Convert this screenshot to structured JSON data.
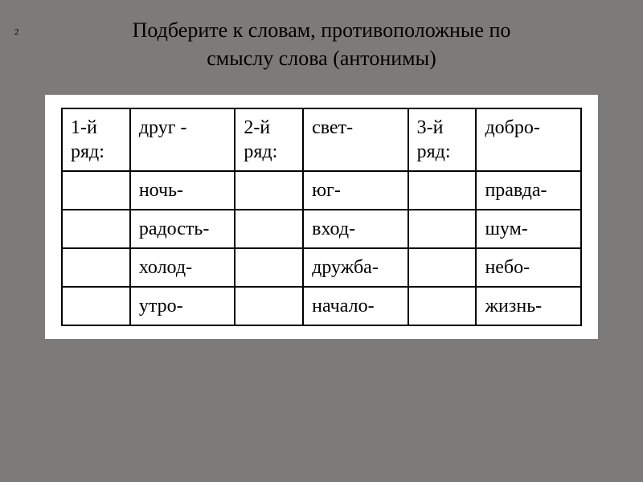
{
  "slideNumber": "2",
  "title": {
    "line1": "Подберите к словам, противоположные по",
    "line2": "смыслу слова (антонимы)"
  },
  "table": {
    "headers": {
      "col1Label": "1-й ряд:",
      "col3Label": "2-й ряд:",
      "col5Label": "3-й ряд:"
    },
    "rows": [
      {
        "c1": "1-й ряд:",
        "c2": "друг -",
        "c3": "2-й ряд:",
        "c4": "свет-",
        "c5": "3-й ряд:",
        "c6": "добро-"
      },
      {
        "c1": "",
        "c2": "ночь-",
        "c3": "",
        "c4": "юг-",
        "c5": "",
        "c6": "правда-"
      },
      {
        "c1": "",
        "c2": "радость-",
        "c3": "",
        "c4": "вход-",
        "c5": "",
        "c6": "шум-"
      },
      {
        "c1": "",
        "c2": "холод-",
        "c3": "",
        "c4": "дружба-",
        "c5": "",
        "c6": "небо-"
      },
      {
        "c1": "",
        "c2": "утро-",
        "c3": "",
        "c4": "начало-",
        "c5": "",
        "c6": "жизнь-"
      }
    ]
  },
  "styles": {
    "backgroundColor": "#7d7a7a",
    "tableBackground": "#ffffff",
    "textColor": "#000000",
    "borderColor": "#000000",
    "titleFontSize": 26,
    "cellFontSize": 24
  }
}
